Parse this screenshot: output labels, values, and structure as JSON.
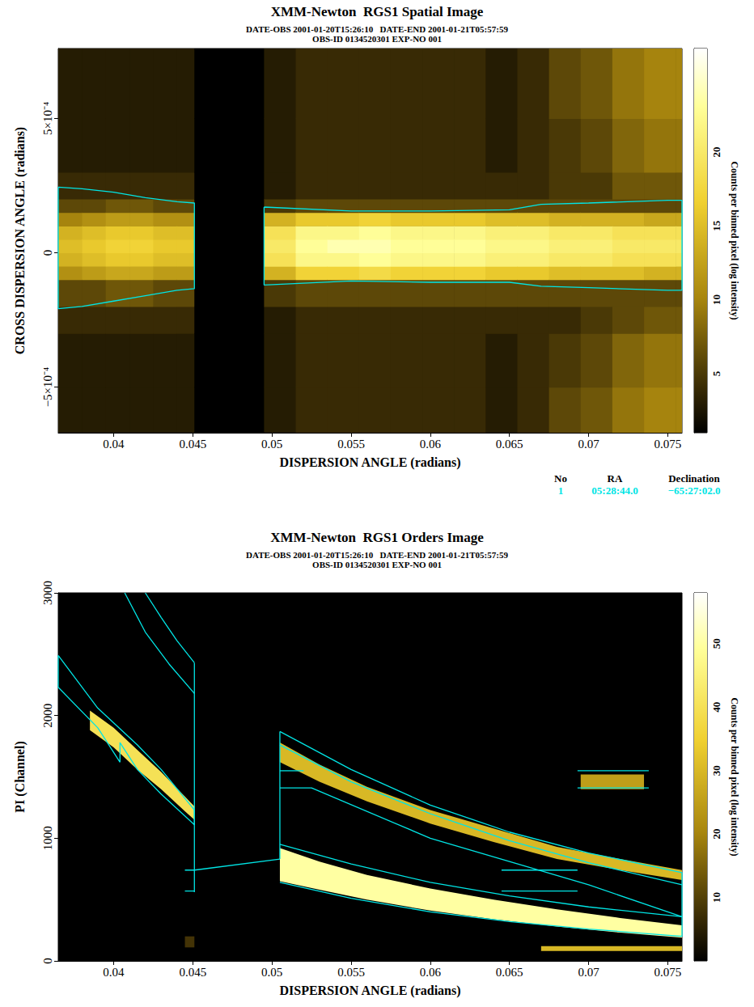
{
  "chart_data": [
    {
      "type": "heatmap",
      "title": "XMM-Newton  RGS1 Spatial Image",
      "subtitle": [
        "DATE-OBS 2001-01-20T15:26:10   DATE-END 2001-01-21T05:57:59",
        "OBS-ID 0134520301 EXP-NO 001"
      ],
      "x_label": "DISPERSION ANGLE (radians)",
      "y_label": "CROSS DISPERSION ANGLE (radians)",
      "xlim": [
        0.0365,
        0.0759
      ],
      "xticks": [
        0.04,
        0.045,
        0.05,
        0.055,
        0.06,
        0.065,
        0.07,
        0.075
      ],
      "ylim": [
        -0.00067,
        0.00076
      ],
      "yticks": [
        {
          "value": -0.0005,
          "label": "−5×10⁻⁴"
        },
        0,
        {
          "value": 0.0005,
          "label": "5×10⁻⁴"
        }
      ],
      "x_edges": [
        0.0365,
        0.038,
        0.0395,
        0.041,
        0.0425,
        0.044,
        0.0451,
        0.0495,
        0.0515,
        0.0535,
        0.0555,
        0.0575,
        0.0595,
        0.0615,
        0.0635,
        0.0655,
        0.0675,
        0.0695,
        0.0715,
        0.0735,
        0.0755,
        0.0759
      ],
      "y_edges": [
        -0.00067,
        -0.0005,
        -0.0003,
        -0.0002,
        -0.0001,
        -5e-05,
        0,
        5e-05,
        0.0001,
        0.00015,
        0.0002,
        0.0003,
        0.0005,
        0.00076
      ],
      "cells": [
        [
          3,
          3,
          4,
          6,
          11,
          14,
          15,
          14,
          10,
          6,
          4,
          3,
          3
        ],
        [
          3,
          3,
          4,
          6,
          12,
          15,
          16,
          15,
          11,
          6,
          4,
          3,
          3
        ],
        [
          3,
          3,
          4,
          7,
          13,
          16,
          17,
          16,
          12,
          7,
          4,
          3,
          3
        ],
        [
          3,
          3,
          4,
          7,
          13,
          16,
          17,
          16,
          12,
          7,
          4,
          3,
          3
        ],
        [
          3,
          3,
          4,
          6,
          12,
          15,
          16,
          15,
          11,
          6,
          4,
          3,
          3
        ],
        [
          3,
          3,
          4,
          6,
          12,
          15,
          16,
          15,
          11,
          6,
          4,
          3,
          3
        ],
        [
          0,
          0,
          0,
          0,
          0,
          0,
          0,
          0,
          0,
          0,
          0,
          0,
          0
        ],
        [
          3,
          3,
          3,
          5,
          14,
          19,
          20,
          19,
          14,
          5,
          3,
          3,
          3
        ],
        [
          4,
          4,
          4,
          6,
          17,
          22,
          23,
          22,
          16,
          6,
          4,
          4,
          4
        ],
        [
          4,
          4,
          4,
          6,
          17,
          22,
          24,
          22,
          16,
          6,
          4,
          4,
          4
        ],
        [
          4,
          4,
          4,
          6,
          18,
          23,
          24,
          23,
          17,
          6,
          4,
          4,
          4
        ],
        [
          4,
          4,
          4,
          6,
          17,
          22,
          23,
          22,
          16,
          6,
          4,
          4,
          4
        ],
        [
          4,
          4,
          4,
          6,
          17,
          22,
          23,
          22,
          16,
          6,
          4,
          4,
          4
        ],
        [
          4,
          4,
          4,
          6,
          17,
          22,
          23,
          22,
          16,
          6,
          4,
          4,
          4
        ],
        [
          3,
          3,
          4,
          6,
          16,
          21,
          22,
          21,
          15,
          6,
          4,
          3,
          3
        ],
        [
          4,
          4,
          4,
          6,
          16,
          21,
          22,
          21,
          15,
          6,
          4,
          4,
          4
        ],
        [
          6,
          5,
          4,
          6,
          15,
          20,
          21,
          20,
          14,
          6,
          5,
          5,
          6
        ],
        [
          7,
          6,
          5,
          6,
          15,
          20,
          21,
          20,
          14,
          6,
          5,
          6,
          7
        ],
        [
          9,
          8,
          6,
          6,
          15,
          19,
          20,
          19,
          14,
          6,
          7,
          8,
          9
        ],
        [
          10,
          9,
          7,
          6,
          14,
          19,
          20,
          19,
          13,
          6,
          7,
          9,
          10
        ],
        [
          10,
          9,
          7,
          6,
          14,
          19,
          20,
          19,
          13,
          6,
          7,
          9,
          10
        ]
      ],
      "colorbar": {
        "label": "Counts per binned pixel (log intensity)",
        "range": [
          1,
          27
        ],
        "ticks": [
          5,
          10,
          15,
          20
        ]
      },
      "regions": {
        "color": "#00e5e5",
        "lines": [
          {
            "x": [
              0.0365,
              0.038,
              0.04,
              0.042,
              0.044,
              0.0451,
              0.0451,
              0.044,
              0.042,
              0.04,
              0.038,
              0.0365,
              0.0365
            ],
            "y": [
              0.000244,
              0.000238,
              0.000225,
              0.000205,
              0.00019,
              0.000185,
              -0.000134,
              -0.00014,
              -0.00016,
              -0.00018,
              -0.0002,
              -0.000208,
              0.000244
            ]
          },
          {
            "x": [
              0.0495,
              0.055,
              0.06,
              0.065,
              0.067,
              0.07,
              0.075,
              0.0759,
              0.0759,
              0.075,
              0.07,
              0.067,
              0.065,
              0.06,
              0.055,
              0.0495,
              0.0495
            ],
            "y": [
              0.00017,
              0.000155,
              0.000155,
              0.00016,
              0.00018,
              0.000185,
              0.000195,
              0.000195,
              -0.00014,
              -0.00014,
              -0.00013,
              -0.000125,
              -0.00011,
              -0.00011,
              -0.000105,
              -0.00012,
              0.00017
            ]
          }
        ]
      },
      "source_table": {
        "header": [
          "No",
          "RA",
          "Declination"
        ],
        "rows": [
          [
            "1",
            "05:28:44.0",
            "−65:27:02.0"
          ]
        ],
        "color": "#00e5e5"
      }
    },
    {
      "type": "bands",
      "title": "XMM-Newton  RGS1 Orders Image",
      "subtitle": [
        "DATE-OBS 2001-01-20T15:26:10   DATE-END 2001-01-21T05:57:59",
        "OBS-ID 0134520301 EXP-NO 001"
      ],
      "x_label": "DISPERSION ANGLE (radians)",
      "y_label": "PI (Channel)",
      "xlim": [
        0.0365,
        0.0759
      ],
      "xticks": [
        0.04,
        0.045,
        0.05,
        0.055,
        0.06,
        0.065,
        0.07,
        0.075
      ],
      "ylim": [
        0,
        3000
      ],
      "yticks": [
        0,
        1000,
        2000,
        3000
      ],
      "bands": [
        {
          "x": [
            0.0385,
            0.04,
            0.0415,
            0.043,
            0.0445,
            0.0451
          ],
          "low": [
            1880,
            1740,
            1560,
            1400,
            1220,
            1150
          ],
          "high": [
            2040,
            1900,
            1720,
            1540,
            1340,
            1260
          ],
          "counts": 40
        },
        {
          "x": [
            0.0505,
            0.053,
            0.056,
            0.06,
            0.064,
            0.068,
            0.072,
            0.0759
          ],
          "low": [
            650,
            580,
            500,
            410,
            340,
            280,
            230,
            190
          ],
          "high": [
            920,
            810,
            700,
            590,
            500,
            420,
            350,
            290
          ],
          "counts": 50
        },
        {
          "x": [
            0.0505,
            0.053,
            0.056,
            0.06,
            0.064,
            0.068,
            0.072,
            0.0759
          ],
          "low": [
            1620,
            1460,
            1300,
            1120,
            970,
            830,
            740,
            660
          ],
          "high": [
            1780,
            1600,
            1420,
            1230,
            1080,
            930,
            830,
            740
          ],
          "counts": 30
        },
        {
          "x": [
            0.0695,
            0.0735
          ],
          "low": [
            1400,
            1400
          ],
          "high": [
            1520,
            1520
          ],
          "counts": 25
        },
        {
          "x": [
            0.0445,
            0.0451
          ],
          "low": [
            110,
            110
          ],
          "high": [
            200,
            200
          ],
          "counts": 8
        },
        {
          "x": [
            0.067,
            0.0759
          ],
          "low": [
            80,
            80
          ],
          "high": [
            120,
            120
          ],
          "counts": 30
        }
      ],
      "colorbar": {
        "label": "Counts per binned pixel (log intensity)",
        "range": [
          0,
          58
        ],
        "ticks": [
          10,
          20,
          30,
          40,
          50
        ]
      },
      "regions": {
        "color": "#00e5e5",
        "lines": [
          {
            "x": [
              0.0365,
              0.039,
              0.0415,
              0.043,
              0.0451,
              0.0451,
              0.043,
              0.0415,
              0.0404,
              0.0404,
              0.039,
              0.0365,
              0.0365
            ],
            "y": [
              2490,
              2060,
              1760,
              1560,
              1230,
              1110,
              1360,
              1560,
              1780,
              1620,
              1900,
              2230,
              2490
            ]
          },
          {
            "x": [
              0.0407,
              0.042,
              0.0435,
              0.0451
            ],
            "y": [
              3000,
              2680,
              2420,
              2180
            ]
          },
          {
            "x": [
              0.042,
              0.043,
              0.044,
              0.0451
            ],
            "y": [
              3000,
              2800,
              2610,
              2430
            ]
          },
          {
            "x": [
              0.0451,
              0.0451
            ],
            "y": [
              2430,
              560
            ]
          },
          {
            "x": [
              0.0445,
              0.0451
            ],
            "y": [
              740,
              740
            ]
          },
          {
            "x": [
              0.0445,
              0.0451
            ],
            "y": [
              570,
              570
            ]
          },
          {
            "x": [
              0.0451,
              0.0505
            ],
            "y": [
              740,
              830
            ]
          },
          {
            "x": [
              0.0505,
              0.0505
            ],
            "y": [
              1870,
              830
            ]
          },
          {
            "x": [
              0.0505,
              0.055,
              0.06,
              0.065,
              0.07,
              0.0759
            ],
            "y": [
              1870,
              1560,
              1270,
              1050,
              880,
              720
            ]
          },
          {
            "x": [
              0.0505,
              0.055,
              0.06,
              0.065,
              0.07,
              0.0759
            ],
            "y": [
              1760,
              1460,
              1200,
              980,
              800,
              620
            ]
          },
          {
            "x": [
              0.0505,
              0.052
            ],
            "y": [
              1550,
              1550
            ]
          },
          {
            "x": [
              0.0505,
              0.0525,
              0.06,
              0.07,
              0.0759
            ],
            "y": [
              1410,
              1410,
              1000,
              620,
              360
            ]
          },
          {
            "x": [
              0.0505,
              0.055,
              0.06,
              0.065,
              0.07,
              0.0759
            ],
            "y": [
              950,
              790,
              640,
              530,
              440,
              360
            ]
          },
          {
            "x": [
              0.0505,
              0.055,
              0.06,
              0.065,
              0.07,
              0.0759
            ],
            "y": [
              640,
              510,
              400,
              320,
              260,
              200
            ]
          },
          {
            "x": [
              0.0759,
              0.0759
            ],
            "y": [
              200,
              720
            ]
          },
          {
            "x": [
              0.0693,
              0.0738
            ],
            "y": [
              1550,
              1550
            ]
          },
          {
            "x": [
              0.0693,
              0.0738
            ],
            "y": [
              1410,
              1410
            ]
          },
          {
            "x": [
              0.0645,
              0.0693
            ],
            "y": [
              740,
              740
            ]
          },
          {
            "x": [
              0.0645,
              0.0693
            ],
            "y": [
              570,
              570
            ]
          }
        ]
      }
    }
  ]
}
